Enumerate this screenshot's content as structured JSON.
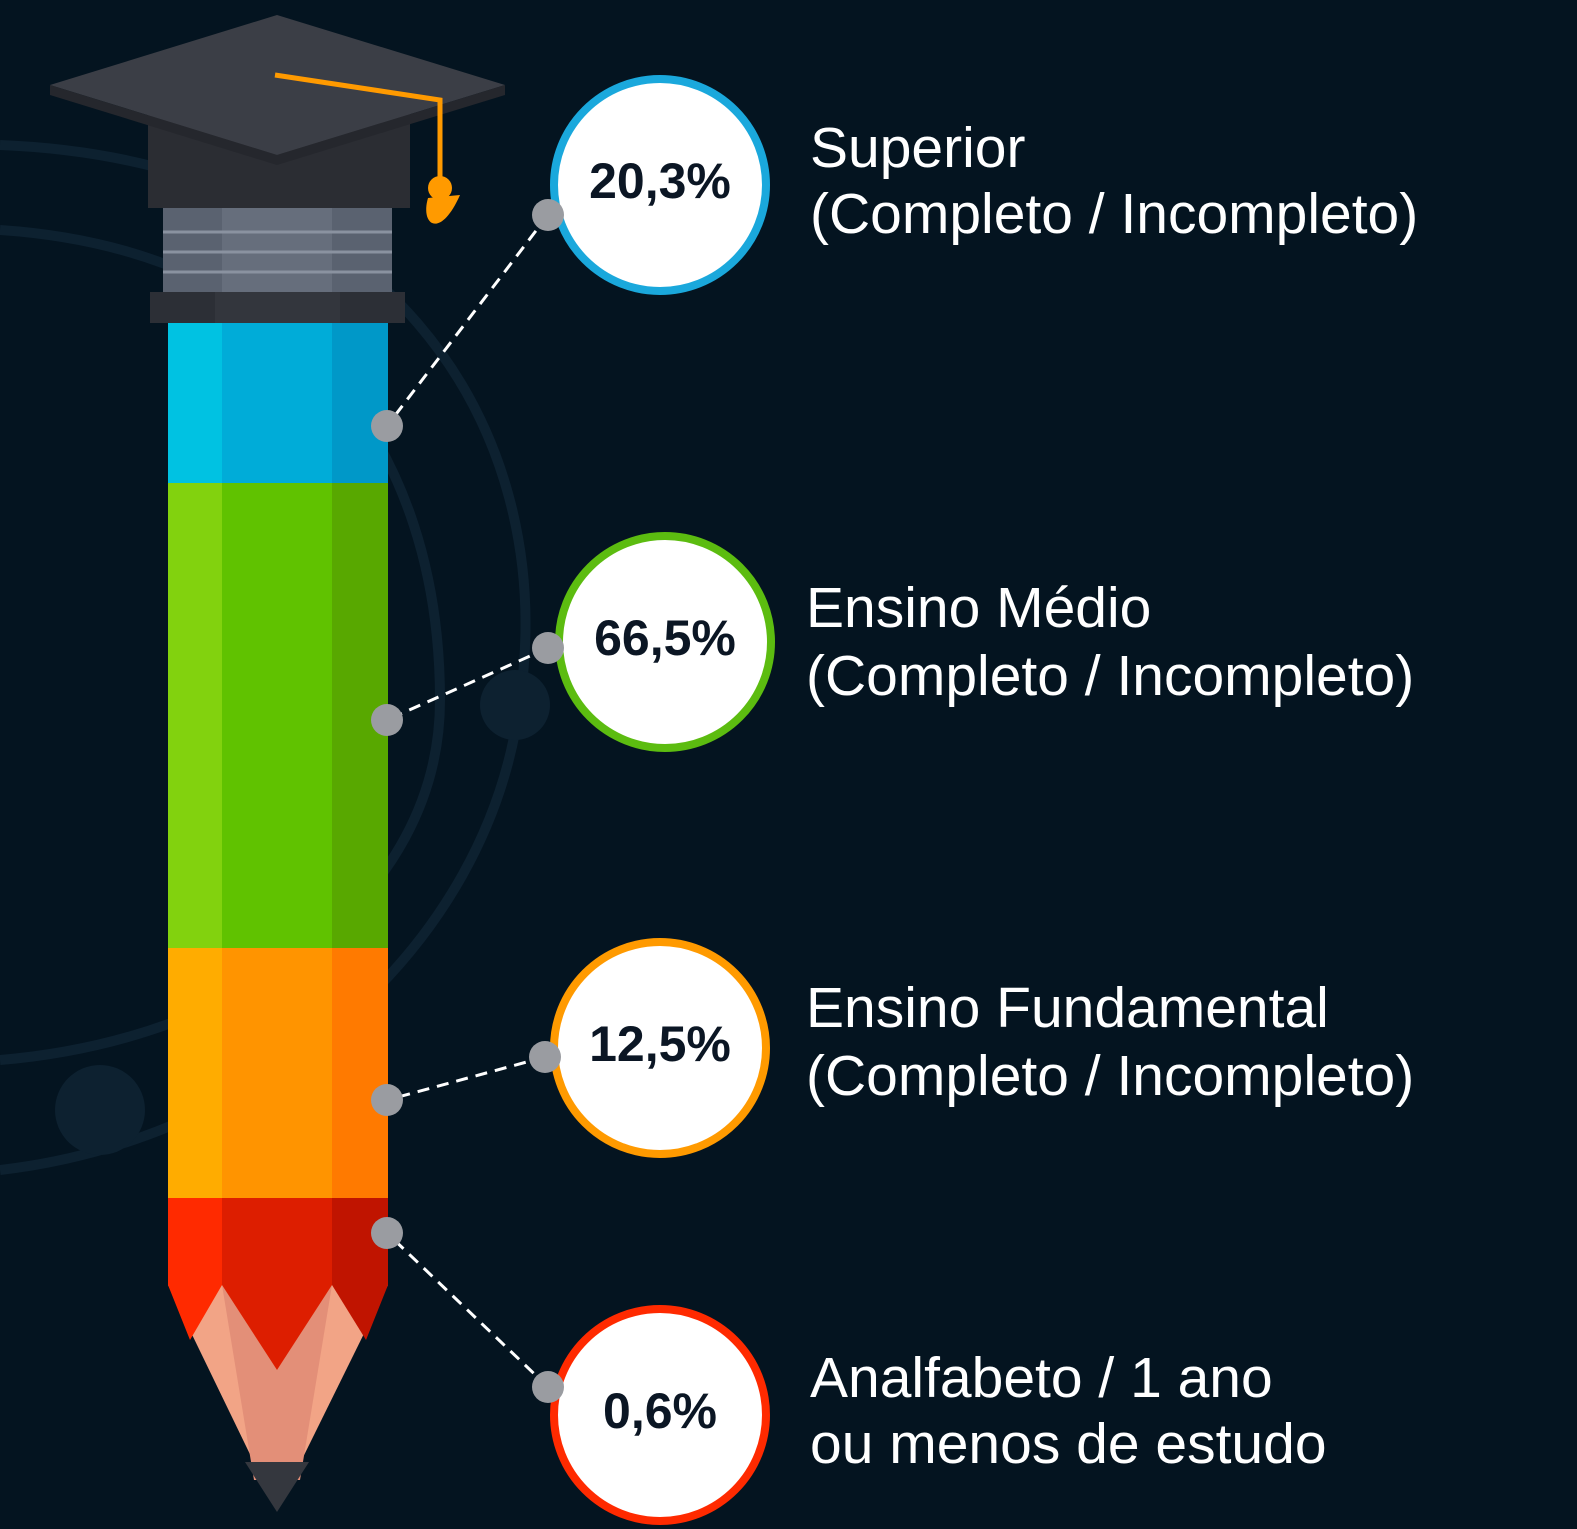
{
  "items": [
    {
      "value": "20,3%",
      "label": [
        "Superior",
        "(Completo / Incompleto)"
      ]
    },
    {
      "value": "66,5%",
      "label": [
        "Ensino Médio",
        "(Completo / Incompleto)"
      ]
    },
    {
      "value": "12,5%",
      "label": [
        "Ensino Fundamental",
        "(Completo / Incompleto)"
      ]
    },
    {
      "value": "0,6%",
      "label": [
        "Analfabeto / 1 ano",
        "ou menos de estudo"
      ]
    }
  ]
}
